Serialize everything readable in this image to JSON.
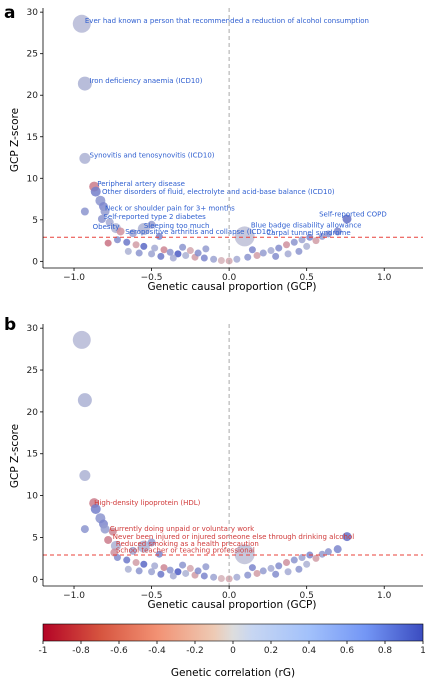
{
  "chart_data": [
    {
      "panel": "a",
      "type": "scatter",
      "xlabel": "Genetic causal proportion (GCP)",
      "ylabel": "GCP Z-score",
      "xlim": [
        -1.2,
        1.25
      ],
      "ylim": [
        -0.8,
        30.5
      ],
      "xticks": [
        -1.0,
        -0.5,
        0.0,
        0.5,
        1.0
      ],
      "xtick_labels": [
        "−1.0",
        "−0.5",
        "0.0",
        "0.5",
        "1.0"
      ],
      "yticks": [
        0,
        5,
        10,
        15,
        20,
        25,
        30
      ],
      "ytick_labels": [
        "0",
        "5",
        "10",
        "15",
        "20",
        "25",
        "30"
      ],
      "threshold": 2.9,
      "annotation_color": "#2f5fd0",
      "annotations": [
        {
          "text": "Ever had known a person that recommended a reduction of alcohol consumption",
          "x": -0.93,
          "y": 28.7
        },
        {
          "text": "Iron deficiency anaemia (ICD10)",
          "x": -0.9,
          "y": 21.5
        },
        {
          "text": "Synovitis and tenosynovitis (ICD10)",
          "x": -0.9,
          "y": 12.5
        },
        {
          "text": "Peripheral artery disease",
          "x": -0.85,
          "y": 9.1
        },
        {
          "text": "Other disorders of fluid, electrolyte and acid-base balance (ICD10)",
          "x": -0.82,
          "y": 8.1
        },
        {
          "text": "Neck or shoulder pain for 3+ months",
          "x": -0.8,
          "y": 6.1
        },
        {
          "text": "Self-reported type 2 diabetes",
          "x": -0.81,
          "y": 5.1
        },
        {
          "text": "Obesity",
          "x": -0.88,
          "y": 3.9
        },
        {
          "text": "Sleeping too much",
          "x": -0.55,
          "y": 4.0
        },
        {
          "text": "Seropositive arthritis and collapse (ICD10)",
          "x": -0.67,
          "y": 3.3
        },
        {
          "text": "Self-reported COPD",
          "x": 0.58,
          "y": 5.4
        },
        {
          "text": "Blue badge disability allowance",
          "x": 0.14,
          "y": 4.1
        },
        {
          "text": "Carpal tunnel syndrome",
          "x": 0.24,
          "y": 3.2
        }
      ],
      "points": [
        {
          "x": -0.95,
          "y": 28.6,
          "r": 9,
          "rg": 0.25
        },
        {
          "x": -0.93,
          "y": 21.4,
          "r": 7,
          "rg": 0.3
        },
        {
          "x": -0.93,
          "y": 12.4,
          "r": 5.5,
          "rg": 0.3
        },
        {
          "x": -0.87,
          "y": 9.0,
          "r": 5,
          "rg": -0.45
        },
        {
          "x": -0.86,
          "y": 8.4,
          "r": 5,
          "rg": 0.65
        },
        {
          "x": -0.83,
          "y": 7.3,
          "r": 5,
          "rg": 0.5
        },
        {
          "x": -0.81,
          "y": 6.6,
          "r": 4.5,
          "rg": 0.6
        },
        {
          "x": -0.8,
          "y": 6.0,
          "r": 4.5,
          "rg": 0.45
        },
        {
          "x": -0.93,
          "y": 6.0,
          "r": 4,
          "rg": 0.5
        },
        {
          "x": -0.82,
          "y": 5.1,
          "r": 4,
          "rg": 0.5
        },
        {
          "x": -0.77,
          "y": 4.7,
          "r": 4,
          "rg": 0.35
        },
        {
          "x": -0.73,
          "y": 4.0,
          "r": 5,
          "rg": 0.3
        },
        {
          "x": -0.7,
          "y": 3.6,
          "r": 4,
          "rg": -0.35
        },
        {
          "x": -0.62,
          "y": 3.4,
          "r": 4,
          "rg": 0.4
        },
        {
          "x": -0.55,
          "y": 3.9,
          "r": 6,
          "rg": 0.3
        },
        {
          "x": -0.5,
          "y": 4.4,
          "r": 4,
          "rg": 0.45
        },
        {
          "x": -0.45,
          "y": 3.0,
          "r": 3.5,
          "rg": 0.6
        },
        {
          "x": -0.72,
          "y": 2.6,
          "r": 3.5,
          "rg": 0.55
        },
        {
          "x": -0.78,
          "y": 2.2,
          "r": 3.5,
          "rg": -0.5
        },
        {
          "x": -0.66,
          "y": 2.3,
          "r": 3.5,
          "rg": 0.7
        },
        {
          "x": -0.6,
          "y": 2.0,
          "r": 3.5,
          "rg": -0.3
        },
        {
          "x": -0.55,
          "y": 1.8,
          "r": 3.5,
          "rg": 0.8
        },
        {
          "x": -0.48,
          "y": 1.6,
          "r": 3.5,
          "rg": 0.35
        },
        {
          "x": -0.42,
          "y": 1.4,
          "r": 3.5,
          "rg": -0.4
        },
        {
          "x": -0.38,
          "y": 1.1,
          "r": 3.5,
          "rg": 0.5
        },
        {
          "x": -0.33,
          "y": 0.9,
          "r": 3.5,
          "rg": 0.9
        },
        {
          "x": -0.28,
          "y": 0.7,
          "r": 3.5,
          "rg": 0.3
        },
        {
          "x": -0.22,
          "y": 0.5,
          "r": 3.5,
          "rg": -0.3
        },
        {
          "x": -0.16,
          "y": 0.4,
          "r": 3.5,
          "rg": 0.6
        },
        {
          "x": -0.1,
          "y": 0.25,
          "r": 3.5,
          "rg": 0.4
        },
        {
          "x": -0.05,
          "y": 0.1,
          "r": 3.5,
          "rg": -0.2
        },
        {
          "x": -0.5,
          "y": 0.9,
          "r": 3.5,
          "rg": 0.4
        },
        {
          "x": -0.44,
          "y": 0.6,
          "r": 3.5,
          "rg": 0.7
        },
        {
          "x": -0.36,
          "y": 0.4,
          "r": 3.5,
          "rg": 0.35
        },
        {
          "x": -0.3,
          "y": 1.7,
          "r": 3.5,
          "rg": 0.5
        },
        {
          "x": -0.25,
          "y": 1.3,
          "r": 3.5,
          "rg": -0.25
        },
        {
          "x": -0.2,
          "y": 1.0,
          "r": 3.5,
          "rg": 0.55
        },
        {
          "x": -0.15,
          "y": 1.5,
          "r": 3.5,
          "rg": 0.45
        },
        {
          "x": -0.65,
          "y": 1.2,
          "r": 3.5,
          "rg": 0.3
        },
        {
          "x": -0.58,
          "y": 1.0,
          "r": 3.5,
          "rg": 0.5
        },
        {
          "x": 0.0,
          "y": 0.05,
          "r": 3.5,
          "rg": -0.25
        },
        {
          "x": 0.05,
          "y": 0.25,
          "r": 3.5,
          "rg": 0.35
        },
        {
          "x": 0.1,
          "y": 3.0,
          "r": 10,
          "rg": 0.2
        },
        {
          "x": 0.12,
          "y": 0.5,
          "r": 3.5,
          "rg": 0.5
        },
        {
          "x": 0.18,
          "y": 0.7,
          "r": 3.5,
          "rg": -0.3
        },
        {
          "x": 0.22,
          "y": 1.0,
          "r": 3.5,
          "rg": 0.45
        },
        {
          "x": 0.27,
          "y": 1.3,
          "r": 3.5,
          "rg": 0.35
        },
        {
          "x": 0.32,
          "y": 1.6,
          "r": 3.5,
          "rg": 0.55
        },
        {
          "x": 0.37,
          "y": 2.0,
          "r": 3.5,
          "rg": -0.35
        },
        {
          "x": 0.42,
          "y": 2.3,
          "r": 3.5,
          "rg": 0.5
        },
        {
          "x": 0.47,
          "y": 2.6,
          "r": 3.5,
          "rg": 0.4
        },
        {
          "x": 0.52,
          "y": 2.9,
          "r": 3.5,
          "rg": 0.6
        },
        {
          "x": 0.56,
          "y": 2.5,
          "r": 3.5,
          "rg": -0.3
        },
        {
          "x": 0.6,
          "y": 3.0,
          "r": 3.5,
          "rg": 0.45
        },
        {
          "x": 0.64,
          "y": 3.3,
          "r": 3.5,
          "rg": 0.5
        },
        {
          "x": 0.7,
          "y": 3.6,
          "r": 4,
          "rg": 0.6
        },
        {
          "x": 0.76,
          "y": 5.1,
          "r": 4.5,
          "rg": 0.75
        },
        {
          "x": 0.45,
          "y": 1.2,
          "r": 3.5,
          "rg": 0.5
        },
        {
          "x": 0.38,
          "y": 0.9,
          "r": 3.5,
          "rg": 0.35
        },
        {
          "x": 0.3,
          "y": 0.6,
          "r": 3.5,
          "rg": 0.55
        },
        {
          "x": 0.5,
          "y": 1.8,
          "r": 3.5,
          "rg": 0.3
        },
        {
          "x": 0.15,
          "y": 1.4,
          "r": 3.5,
          "rg": 0.6
        }
      ]
    },
    {
      "panel": "b",
      "type": "scatter",
      "xlabel": "Genetic causal proportion (GCP)",
      "ylabel": "GCP Z-score",
      "xlim": [
        -1.2,
        1.25
      ],
      "ylim": [
        -0.8,
        30.5
      ],
      "xticks": [
        -1.0,
        -0.5,
        0.0,
        0.5,
        1.0
      ],
      "xtick_labels": [
        "−1.0",
        "−0.5",
        "0.0",
        "0.5",
        "1.0"
      ],
      "yticks": [
        0,
        5,
        10,
        15,
        20,
        25,
        30
      ],
      "ytick_labels": [
        "0",
        "5",
        "10",
        "15",
        "20",
        "25",
        "30"
      ],
      "threshold": 2.9,
      "annotation_color": "#d03a3a",
      "annotations": [
        {
          "text": "High-density lipoprotein (HDL)",
          "x": -0.87,
          "y": 8.9
        },
        {
          "text": "Currently doing unpaid or voluntary work",
          "x": -0.77,
          "y": 5.8
        },
        {
          "text": "Never been injured or injured someone else through drinking alcohol",
          "x": -0.75,
          "y": 4.8
        },
        {
          "text": "Reduced smoking as a health precaution",
          "x": -0.73,
          "y": 4.0
        },
        {
          "text": "School teacher or teaching professional",
          "x": -0.73,
          "y": 3.2
        }
      ],
      "points": [
        {
          "x": -0.95,
          "y": 28.6,
          "r": 9,
          "rg": 0.25
        },
        {
          "x": -0.93,
          "y": 21.4,
          "r": 7,
          "rg": 0.3
        },
        {
          "x": -0.93,
          "y": 12.4,
          "r": 5.5,
          "rg": 0.3
        },
        {
          "x": -0.87,
          "y": 9.1,
          "r": 5,
          "rg": -0.45
        },
        {
          "x": -0.86,
          "y": 8.4,
          "r": 5,
          "rg": 0.65
        },
        {
          "x": -0.83,
          "y": 7.3,
          "r": 5,
          "rg": 0.5
        },
        {
          "x": -0.81,
          "y": 6.6,
          "r": 4.5,
          "rg": 0.6
        },
        {
          "x": -0.8,
          "y": 6.0,
          "r": 4.5,
          "rg": 0.45
        },
        {
          "x": -0.93,
          "y": 6.0,
          "r": 4,
          "rg": 0.5
        },
        {
          "x": -0.75,
          "y": 5.7,
          "r": 4,
          "rg": -0.4
        },
        {
          "x": -0.78,
          "y": 4.7,
          "r": 4,
          "rg": -0.45
        },
        {
          "x": -0.73,
          "y": 4.0,
          "r": 5,
          "rg": 0.3
        },
        {
          "x": -0.74,
          "y": 3.2,
          "r": 4,
          "rg": -0.35
        },
        {
          "x": -0.62,
          "y": 3.4,
          "r": 4,
          "rg": 0.4
        },
        {
          "x": -0.55,
          "y": 3.9,
          "r": 6,
          "rg": 0.3
        },
        {
          "x": -0.5,
          "y": 4.4,
          "r": 4,
          "rg": 0.45
        },
        {
          "x": -0.45,
          "y": 3.0,
          "r": 3.5,
          "rg": 0.6
        },
        {
          "x": -0.72,
          "y": 2.6,
          "r": 3.5,
          "rg": 0.55
        },
        {
          "x": -0.66,
          "y": 2.3,
          "r": 3.5,
          "rg": 0.7
        },
        {
          "x": -0.6,
          "y": 2.0,
          "r": 3.5,
          "rg": -0.3
        },
        {
          "x": -0.55,
          "y": 1.8,
          "r": 3.5,
          "rg": 0.8
        },
        {
          "x": -0.48,
          "y": 1.6,
          "r": 3.5,
          "rg": 0.35
        },
        {
          "x": -0.42,
          "y": 1.4,
          "r": 3.5,
          "rg": -0.4
        },
        {
          "x": -0.38,
          "y": 1.1,
          "r": 3.5,
          "rg": 0.5
        },
        {
          "x": -0.33,
          "y": 0.9,
          "r": 3.5,
          "rg": 0.9
        },
        {
          "x": -0.28,
          "y": 0.7,
          "r": 3.5,
          "rg": 0.3
        },
        {
          "x": -0.22,
          "y": 0.5,
          "r": 3.5,
          "rg": -0.3
        },
        {
          "x": -0.16,
          "y": 0.4,
          "r": 3.5,
          "rg": 0.6
        },
        {
          "x": -0.1,
          "y": 0.25,
          "r": 3.5,
          "rg": 0.4
        },
        {
          "x": -0.05,
          "y": 0.1,
          "r": 3.5,
          "rg": -0.2
        },
        {
          "x": -0.5,
          "y": 0.9,
          "r": 3.5,
          "rg": 0.4
        },
        {
          "x": -0.44,
          "y": 0.6,
          "r": 3.5,
          "rg": 0.7
        },
        {
          "x": -0.36,
          "y": 0.4,
          "r": 3.5,
          "rg": 0.35
        },
        {
          "x": -0.3,
          "y": 1.7,
          "r": 3.5,
          "rg": 0.5
        },
        {
          "x": -0.25,
          "y": 1.3,
          "r": 3.5,
          "rg": -0.25
        },
        {
          "x": -0.2,
          "y": 1.0,
          "r": 3.5,
          "rg": 0.55
        },
        {
          "x": -0.15,
          "y": 1.5,
          "r": 3.5,
          "rg": 0.45
        },
        {
          "x": -0.65,
          "y": 1.2,
          "r": 3.5,
          "rg": 0.3
        },
        {
          "x": -0.58,
          "y": 1.0,
          "r": 3.5,
          "rg": 0.5
        },
        {
          "x": 0.0,
          "y": 0.05,
          "r": 3.5,
          "rg": -0.25
        },
        {
          "x": 0.05,
          "y": 0.25,
          "r": 3.5,
          "rg": 0.35
        },
        {
          "x": 0.1,
          "y": 3.0,
          "r": 10,
          "rg": 0.2
        },
        {
          "x": 0.12,
          "y": 0.5,
          "r": 3.5,
          "rg": 0.5
        },
        {
          "x": 0.18,
          "y": 0.7,
          "r": 3.5,
          "rg": -0.3
        },
        {
          "x": 0.22,
          "y": 1.0,
          "r": 3.5,
          "rg": 0.45
        },
        {
          "x": 0.27,
          "y": 1.3,
          "r": 3.5,
          "rg": 0.35
        },
        {
          "x": 0.32,
          "y": 1.6,
          "r": 3.5,
          "rg": 0.55
        },
        {
          "x": 0.37,
          "y": 2.0,
          "r": 3.5,
          "rg": -0.35
        },
        {
          "x": 0.42,
          "y": 2.3,
          "r": 3.5,
          "rg": 0.5
        },
        {
          "x": 0.47,
          "y": 2.6,
          "r": 3.5,
          "rg": 0.4
        },
        {
          "x": 0.52,
          "y": 2.9,
          "r": 3.5,
          "rg": 0.6
        },
        {
          "x": 0.56,
          "y": 2.5,
          "r": 3.5,
          "rg": -0.3
        },
        {
          "x": 0.6,
          "y": 3.0,
          "r": 3.5,
          "rg": 0.45
        },
        {
          "x": 0.64,
          "y": 3.3,
          "r": 3.5,
          "rg": 0.5
        },
        {
          "x": 0.7,
          "y": 3.6,
          "r": 4,
          "rg": 0.6
        },
        {
          "x": 0.76,
          "y": 5.1,
          "r": 4.5,
          "rg": 0.75
        },
        {
          "x": 0.45,
          "y": 1.2,
          "r": 3.5,
          "rg": 0.5
        },
        {
          "x": 0.38,
          "y": 0.9,
          "r": 3.5,
          "rg": 0.35
        },
        {
          "x": 0.3,
          "y": 0.6,
          "r": 3.5,
          "rg": 0.55
        },
        {
          "x": 0.5,
          "y": 1.8,
          "r": 3.5,
          "rg": 0.3
        },
        {
          "x": 0.15,
          "y": 1.4,
          "r": 3.5,
          "rg": 0.6
        }
      ]
    }
  ],
  "colorbar": {
    "label": "Genetic correlation (rG)",
    "ticks": [
      -1,
      -0.8,
      -0.6,
      -0.4,
      -0.2,
      0,
      0.2,
      0.4,
      0.6,
      0.8,
      1
    ],
    "tick_labels": [
      "-1",
      "-0.8",
      "-0.6",
      "-0.4",
      "-0.2",
      "0",
      "0.2",
      "0.4",
      "0.6",
      "0.8",
      "1"
    ],
    "colors": {
      "neg": "#b40426",
      "mid": "#dddddd",
      "pos": "#3b4cc0"
    }
  },
  "panel_letters": [
    "a",
    "b"
  ]
}
